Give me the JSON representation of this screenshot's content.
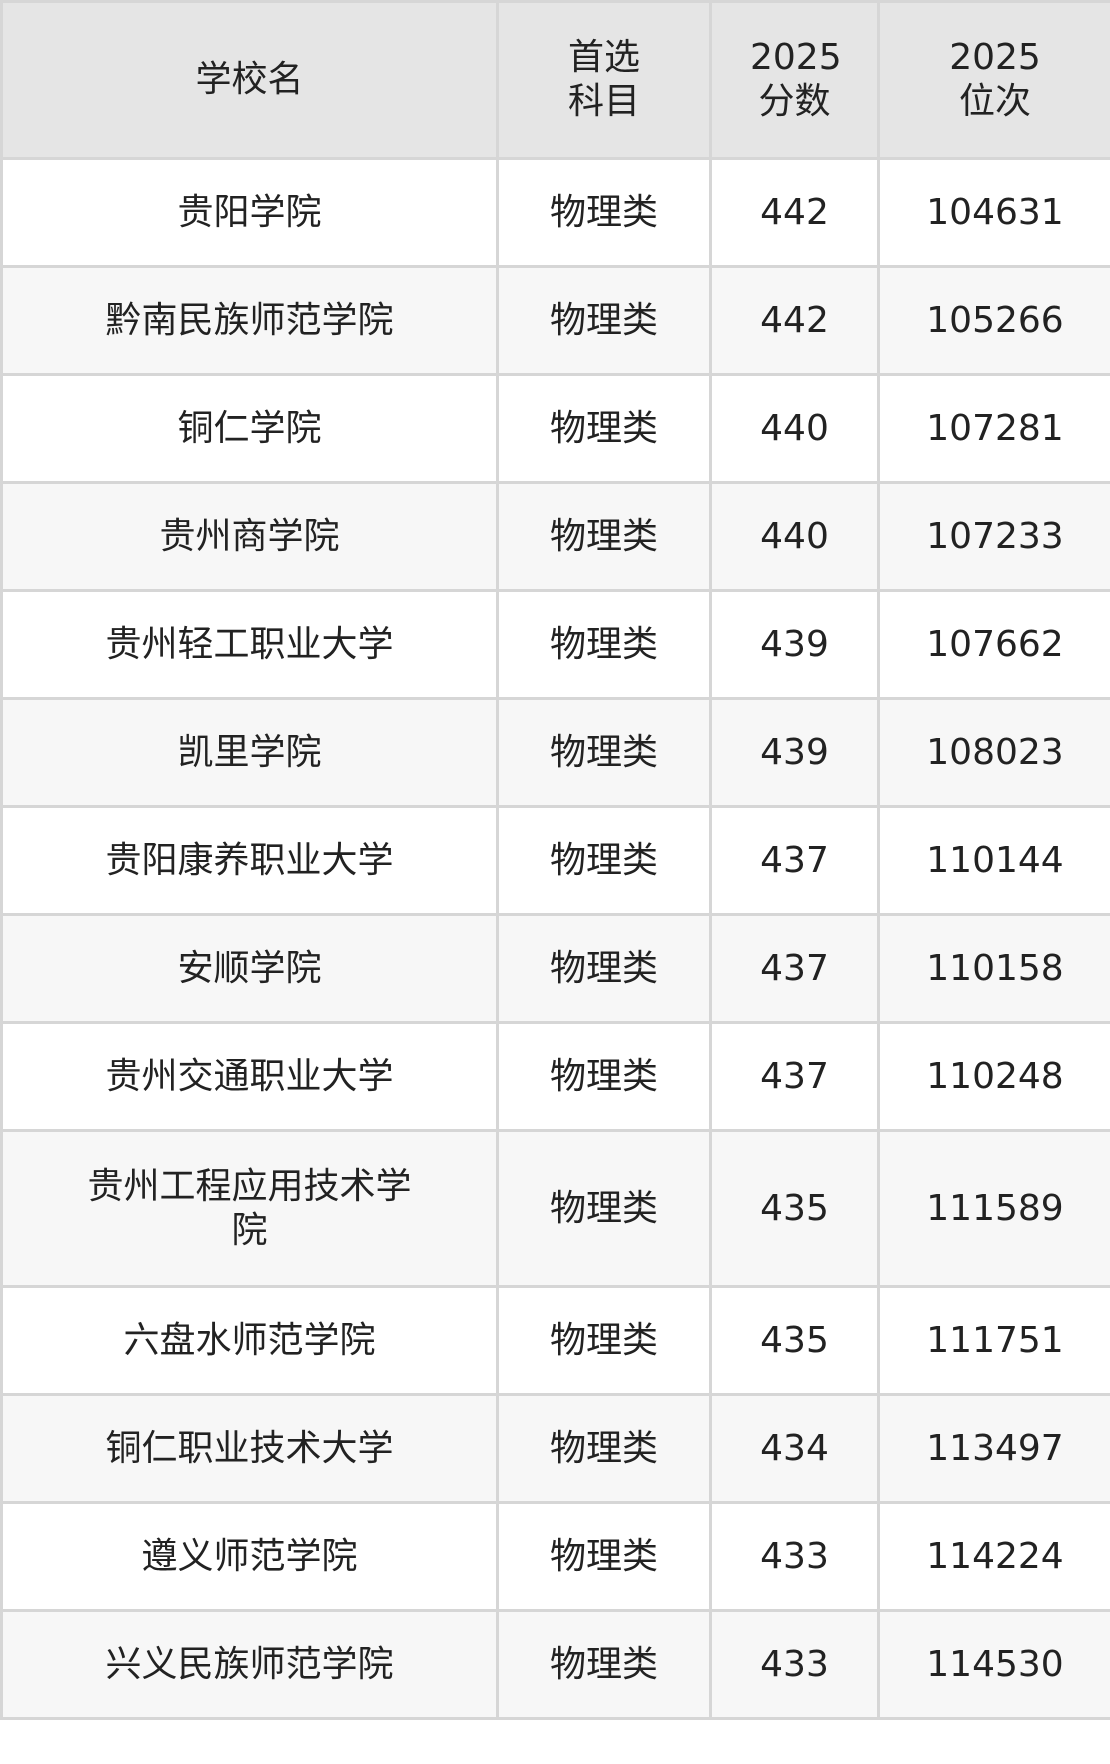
{
  "header": {
    "school": "学校名",
    "subject": "首选科目",
    "score": "2025分数",
    "rank": "2025位次"
  },
  "rows": [
    {
      "school": "贵阳学院",
      "subject": "物理类",
      "score": "442",
      "rank": "104631"
    },
    {
      "school": "黔南民族师范学院",
      "subject": "物理类",
      "score": "442",
      "rank": "105266"
    },
    {
      "school": "铜仁学院",
      "subject": "物理类",
      "score": "440",
      "rank": "107281"
    },
    {
      "school": "贵州商学院",
      "subject": "物理类",
      "score": "440",
      "rank": "107233"
    },
    {
      "school": "贵州轻工职业大学",
      "subject": "物理类",
      "score": "439",
      "rank": "107662"
    },
    {
      "school": "凯里学院",
      "subject": "物理类",
      "score": "439",
      "rank": "108023"
    },
    {
      "school": "贵阳康养职业大学",
      "subject": "物理类",
      "score": "437",
      "rank": "110144"
    },
    {
      "school": "安顺学院",
      "subject": "物理类",
      "score": "437",
      "rank": "110158"
    },
    {
      "school": "贵州交通职业大学",
      "subject": "物理类",
      "score": "437",
      "rank": "110248"
    },
    {
      "school": "贵州工程应用技术学院",
      "subject": "物理类",
      "score": "435",
      "rank": "111589"
    },
    {
      "school": "六盘水师范学院",
      "subject": "物理类",
      "score": "435",
      "rank": "111751"
    },
    {
      "school": "铜仁职业技术大学",
      "subject": "物理类",
      "score": "434",
      "rank": "113497"
    },
    {
      "school": "遵义师范学院",
      "subject": "物理类",
      "score": "433",
      "rank": "114224"
    },
    {
      "school": "兴义民族师范学院",
      "subject": "物理类",
      "score": "433",
      "rank": "114530"
    }
  ]
}
